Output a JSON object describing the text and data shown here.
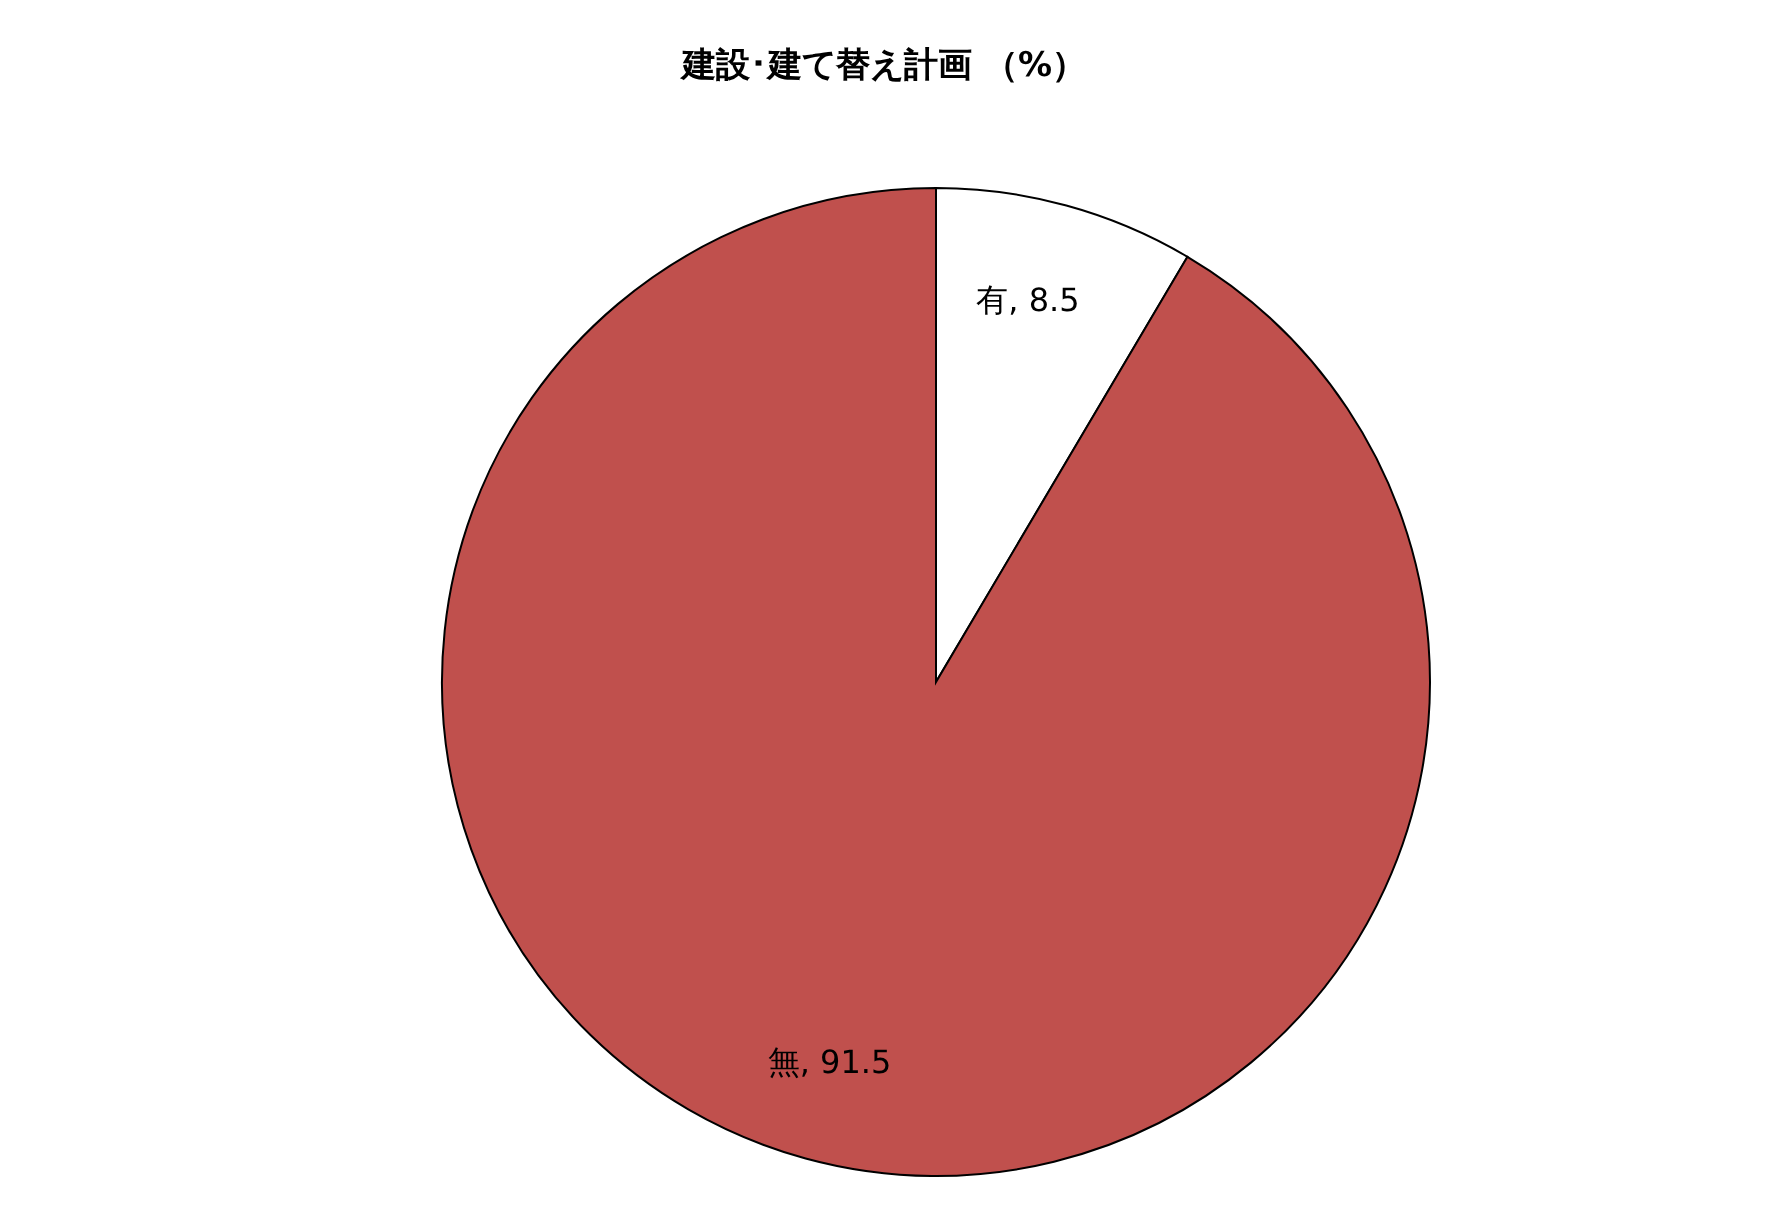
{
  "chart_data": {
    "type": "pie",
    "title": "建設･建て替え計画 （%）",
    "categories": [
      "有",
      "無"
    ],
    "values": [
      8.5,
      91.5
    ],
    "colors": [
      "#ffffff",
      "#c0504d"
    ],
    "value_labels": [
      ", 8.5",
      ", 91.5"
    ],
    "legend": false
  }
}
